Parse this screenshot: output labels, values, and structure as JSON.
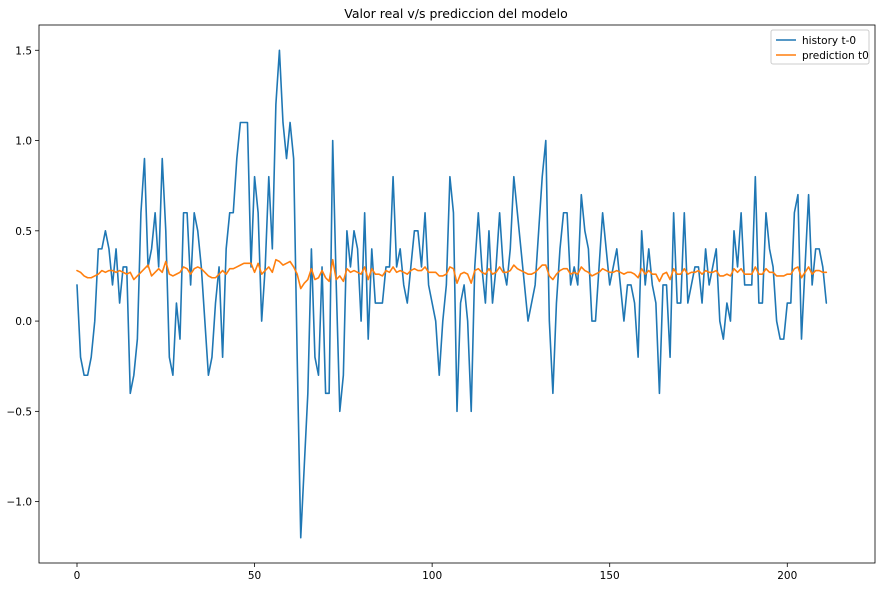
{
  "chart_data": {
    "type": "line",
    "title": "Valor real v/s prediccion del modelo",
    "xlabel": "",
    "ylabel": "",
    "xlim": [
      -10.7,
      224.7
    ],
    "ylim": [
      -1.34,
      1.64
    ],
    "xticks": [
      0,
      50,
      100,
      150,
      200
    ],
    "yticks": [
      -1.0,
      -0.5,
      0.0,
      0.5,
      1.0,
      1.5
    ],
    "xtick_labels": [
      "0",
      "50",
      "100",
      "150",
      "200"
    ],
    "ytick_labels": [
      "−1.0",
      "−0.5",
      "0.0",
      "0.5",
      "1.0",
      "1.5"
    ],
    "grid": false,
    "legend_position": "top-right",
    "series": [
      {
        "name": "history t-0",
        "color": "#1f77b4",
        "values": [
          0.2,
          -0.2,
          -0.3,
          -0.3,
          -0.2,
          0.0,
          0.4,
          0.4,
          0.5,
          0.4,
          0.2,
          0.4,
          0.1,
          0.3,
          0.3,
          -0.4,
          -0.3,
          -0.1,
          0.6,
          0.9,
          0.3,
          0.4,
          0.6,
          0.3,
          0.9,
          0.5,
          -0.2,
          -0.3,
          0.1,
          -0.1,
          0.6,
          0.6,
          0.2,
          0.6,
          0.5,
          0.3,
          0.0,
          -0.3,
          -0.2,
          0.1,
          0.3,
          -0.2,
          0.4,
          0.6,
          0.6,
          0.9,
          1.1,
          1.1,
          1.1,
          0.3,
          0.8,
          0.6,
          0.0,
          0.3,
          0.8,
          0.4,
          1.2,
          1.5,
          1.1,
          0.9,
          1.1,
          0.9,
          -0.2,
          -1.2,
          -0.8,
          -0.4,
          0.4,
          -0.2,
          -0.3,
          0.3,
          -0.4,
          -0.4,
          1.0,
          0.2,
          -0.5,
          -0.3,
          0.5,
          0.3,
          0.5,
          0.4,
          0.0,
          0.6,
          -0.1,
          0.4,
          0.1,
          0.1,
          0.1,
          0.3,
          0.3,
          0.8,
          0.3,
          0.4,
          0.2,
          0.1,
          0.3,
          0.5,
          0.5,
          0.3,
          0.6,
          0.2,
          0.1,
          0.0,
          -0.3,
          0.0,
          0.2,
          0.8,
          0.6,
          -0.5,
          0.1,
          0.2,
          0.0,
          -0.5,
          0.3,
          0.6,
          0.3,
          0.1,
          0.5,
          0.1,
          0.3,
          0.6,
          0.3,
          0.2,
          0.4,
          0.8,
          0.6,
          0.4,
          0.2,
          0.0,
          0.1,
          0.2,
          0.5,
          0.8,
          1.0,
          0.0,
          -0.4,
          0.1,
          0.4,
          0.6,
          0.6,
          0.2,
          0.3,
          0.2,
          0.7,
          0.5,
          0.4,
          0.0,
          0.0,
          0.3,
          0.6,
          0.4,
          0.2,
          0.3,
          0.4,
          0.2,
          0.0,
          0.2,
          0.2,
          0.1,
          -0.2,
          0.5,
          0.2,
          0.4,
          0.2,
          0.1,
          -0.4,
          0.2,
          0.2,
          -0.2,
          0.6,
          0.1,
          0.1,
          0.6,
          0.1,
          0.2,
          0.3,
          0.3,
          0.1,
          0.4,
          0.2,
          0.3,
          0.4,
          0.0,
          -0.1,
          0.1,
          0.0,
          0.5,
          0.3,
          0.6,
          0.2,
          0.2,
          0.2,
          0.8,
          0.1,
          0.1,
          0.6,
          0.4,
          0.3,
          0.0,
          -0.1,
          -0.1,
          0.1,
          0.1,
          0.6,
          0.7,
          -0.1,
          0.3,
          0.7,
          0.2,
          0.4,
          0.4,
          0.3,
          0.1
        ]
      },
      {
        "name": "prediction t0",
        "color": "#ff7f0e",
        "values": [
          0.28,
          0.27,
          0.25,
          0.24,
          0.24,
          0.25,
          0.26,
          0.28,
          0.27,
          0.28,
          0.28,
          0.27,
          0.28,
          0.27,
          0.26,
          0.27,
          0.23,
          0.25,
          0.27,
          0.29,
          0.31,
          0.25,
          0.27,
          0.29,
          0.27,
          0.33,
          0.26,
          0.25,
          0.26,
          0.27,
          0.3,
          0.29,
          0.26,
          0.29,
          0.3,
          0.29,
          0.27,
          0.25,
          0.24,
          0.24,
          0.26,
          0.28,
          0.26,
          0.29,
          0.29,
          0.3,
          0.31,
          0.32,
          0.32,
          0.32,
          0.27,
          0.32,
          0.26,
          0.28,
          0.3,
          0.27,
          0.34,
          0.33,
          0.31,
          0.32,
          0.33,
          0.3,
          0.26,
          0.18,
          0.21,
          0.23,
          0.29,
          0.23,
          0.24,
          0.28,
          0.24,
          0.22,
          0.34,
          0.23,
          0.25,
          0.22,
          0.29,
          0.27,
          0.28,
          0.27,
          0.26,
          0.3,
          0.23,
          0.29,
          0.26,
          0.26,
          0.25,
          0.28,
          0.27,
          0.3,
          0.27,
          0.28,
          0.27,
          0.26,
          0.28,
          0.29,
          0.28,
          0.28,
          0.3,
          0.27,
          0.27,
          0.27,
          0.25,
          0.25,
          0.26,
          0.3,
          0.29,
          0.21,
          0.26,
          0.27,
          0.26,
          0.21,
          0.28,
          0.29,
          0.27,
          0.26,
          0.29,
          0.26,
          0.27,
          0.3,
          0.27,
          0.27,
          0.28,
          0.31,
          0.29,
          0.28,
          0.27,
          0.26,
          0.26,
          0.27,
          0.29,
          0.31,
          0.31,
          0.25,
          0.23,
          0.26,
          0.28,
          0.29,
          0.29,
          0.26,
          0.27,
          0.26,
          0.3,
          0.28,
          0.27,
          0.25,
          0.26,
          0.27,
          0.29,
          0.28,
          0.27,
          0.27,
          0.28,
          0.27,
          0.26,
          0.27,
          0.27,
          0.26,
          0.24,
          0.29,
          0.26,
          0.28,
          0.26,
          0.26,
          0.22,
          0.26,
          0.27,
          0.23,
          0.29,
          0.26,
          0.26,
          0.29,
          0.26,
          0.27,
          0.27,
          0.28,
          0.26,
          0.28,
          0.27,
          0.27,
          0.28,
          0.25,
          0.25,
          0.26,
          0.25,
          0.29,
          0.27,
          0.29,
          0.26,
          0.26,
          0.26,
          0.3,
          0.26,
          0.26,
          0.29,
          0.27,
          0.27,
          0.25,
          0.25,
          0.25,
          0.26,
          0.26,
          0.29,
          0.3,
          0.24,
          0.27,
          0.3,
          0.26,
          0.28,
          0.28,
          0.27,
          0.27
        ]
      }
    ]
  }
}
